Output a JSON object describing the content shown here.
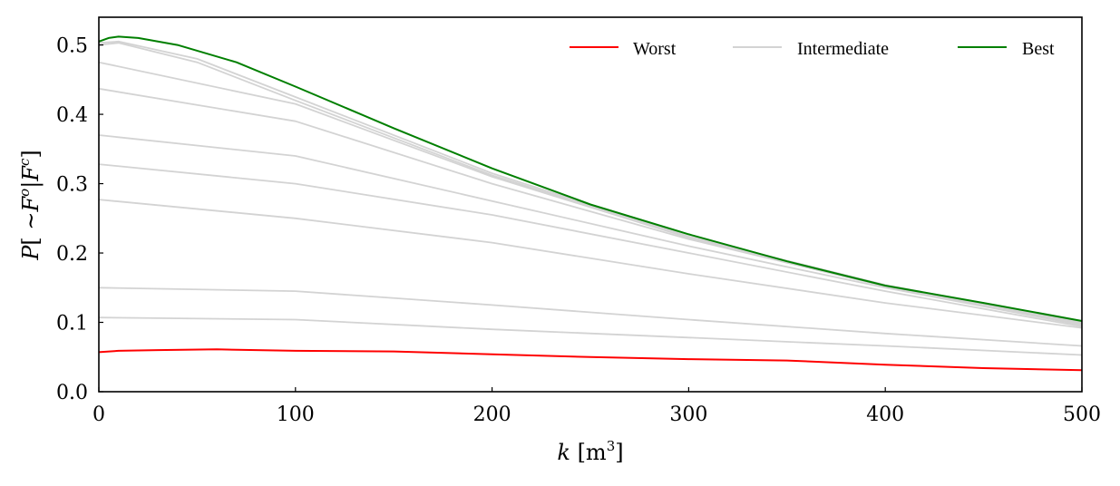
{
  "chart_data": {
    "type": "line",
    "xlabel": {
      "var": "k",
      "unit_open": " [m",
      "unit_sup": "3",
      "unit_close": "]"
    },
    "ylabel": {
      "p": "P",
      "open": "[ ~",
      "f1": "F",
      "sup1": "o",
      "bar": "|",
      "f2": "F",
      "sup2": "c",
      "close": "]"
    },
    "xlim": [
      0,
      500
    ],
    "ylim": [
      0,
      0.54
    ],
    "xticks": [
      0,
      100,
      200,
      300,
      400,
      500
    ],
    "xtick_labels": [
      "0",
      "100",
      "200",
      "300",
      "400",
      "500"
    ],
    "yticks": [
      0.0,
      0.1,
      0.2,
      0.3,
      0.4,
      0.5
    ],
    "ytick_labels": [
      "0.0",
      "0.1",
      "0.2",
      "0.3",
      "0.4",
      "0.5"
    ],
    "grid": false,
    "legend": {
      "placement": "top-right",
      "entries": [
        {
          "label": "Worst",
          "color": "#ff0000"
        },
        {
          "label": "Intermediate",
          "color": "#d3d3d3"
        },
        {
          "label": "Best",
          "color": "#007f00"
        }
      ]
    },
    "series": [
      {
        "role": "intermediate",
        "color": "#d3d3d3",
        "x": [
          0,
          100,
          200,
          300,
          400,
          500
        ],
        "y": [
          0.107,
          0.104,
          0.09,
          0.078,
          0.066,
          0.053
        ]
      },
      {
        "role": "intermediate",
        "color": "#d3d3d3",
        "x": [
          0,
          100,
          200,
          300,
          400,
          500
        ],
        "y": [
          0.15,
          0.145,
          0.125,
          0.104,
          0.084,
          0.066
        ]
      },
      {
        "role": "intermediate",
        "color": "#d3d3d3",
        "x": [
          0,
          100,
          200,
          300,
          400,
          500
        ],
        "y": [
          0.277,
          0.25,
          0.215,
          0.17,
          0.128,
          0.092
        ]
      },
      {
        "role": "intermediate",
        "color": "#d3d3d3",
        "x": [
          0,
          100,
          200,
          300,
          400,
          500
        ],
        "y": [
          0.328,
          0.3,
          0.255,
          0.2,
          0.145,
          0.094
        ]
      },
      {
        "role": "intermediate",
        "color": "#d3d3d3",
        "x": [
          0,
          100,
          200,
          300,
          400,
          500
        ],
        "y": [
          0.37,
          0.34,
          0.275,
          0.21,
          0.15,
          0.096
        ]
      },
      {
        "role": "intermediate",
        "color": "#d3d3d3",
        "x": [
          0,
          100,
          200,
          300,
          400,
          500
        ],
        "y": [
          0.437,
          0.39,
          0.3,
          0.22,
          0.152,
          0.097
        ]
      },
      {
        "role": "intermediate",
        "color": "#d3d3d3",
        "x": [
          0,
          100,
          200,
          300,
          400,
          500
        ],
        "y": [
          0.475,
          0.415,
          0.31,
          0.222,
          0.153,
          0.098
        ]
      },
      {
        "role": "intermediate",
        "color": "#d3d3d3",
        "x": [
          0,
          10,
          50,
          100,
          200,
          300,
          400,
          500
        ],
        "y": [
          0.5,
          0.503,
          0.475,
          0.42,
          0.312,
          0.223,
          0.153,
          0.099
        ]
      },
      {
        "role": "intermediate",
        "color": "#d3d3d3",
        "x": [
          0,
          10,
          50,
          100,
          200,
          300,
          400,
          500
        ],
        "y": [
          0.503,
          0.505,
          0.48,
          0.425,
          0.315,
          0.224,
          0.154,
          0.1
        ]
      },
      {
        "role": "worst",
        "color": "#ff0000",
        "x": [
          0,
          10,
          30,
          60,
          100,
          150,
          200,
          250,
          300,
          350,
          400,
          450,
          500
        ],
        "y": [
          0.057,
          0.059,
          0.06,
          0.061,
          0.059,
          0.058,
          0.054,
          0.05,
          0.047,
          0.045,
          0.039,
          0.034,
          0.031
        ]
      },
      {
        "role": "best",
        "color": "#007f00",
        "x": [
          0,
          5,
          10,
          20,
          40,
          70,
          100,
          150,
          200,
          250,
          300,
          350,
          400,
          450,
          500
        ],
        "y": [
          0.505,
          0.51,
          0.512,
          0.51,
          0.5,
          0.475,
          0.44,
          0.38,
          0.322,
          0.27,
          0.227,
          0.188,
          0.153,
          0.128,
          0.102
        ]
      }
    ]
  }
}
